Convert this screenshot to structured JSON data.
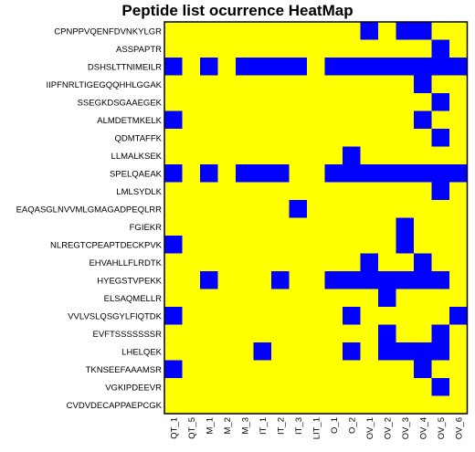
{
  "chart_data": {
    "type": "heatmap",
    "title": "Peptide list ocurrence HeatMap",
    "columns": [
      "QT_1",
      "QT_5",
      "M_1",
      "M_2",
      "M_3",
      "IT_1",
      "IT_2",
      "IT_3",
      "LIT_1",
      "O_1",
      "O_2",
      "OV_1",
      "OV_2",
      "OV_3",
      "OV_4",
      "OV_5",
      "OV_6"
    ],
    "rows": [
      "CPNPPVQENFDVNKYLGR",
      "ASSPAPTR",
      "DSHSLTTNIMEILR",
      "IIPFNRLTIGEGQQHHLGGAK",
      "SSEGKDSGAAEGEK",
      "ALMDETMKELK",
      "QDMTAFFK",
      "LLMALKSEK",
      "SPELQAEAK",
      "LMLSYDLK",
      "EAQASGLNVVMLGMAGADPEQLRR",
      "FGIEKR",
      "NLREGTCPEAPTDECKPVK",
      "EHVAHLLFLRDTK",
      "HYEGSTVPEKK",
      "ELSAQMELLR",
      "VVLVSLQSGYLFIQTDK",
      "EVFTSSSSSSSR",
      "LHELQEK",
      "TKNSEEFAAAMSR",
      "VGKIPDEEVR",
      "CVDVDECAPPAEPCGK"
    ],
    "values": [
      [
        0,
        0,
        0,
        0,
        0,
        0,
        0,
        0,
        0,
        0,
        0,
        1,
        0,
        1,
        1,
        0,
        0
      ],
      [
        0,
        0,
        0,
        0,
        0,
        0,
        0,
        0,
        0,
        0,
        0,
        0,
        0,
        0,
        0,
        1,
        0
      ],
      [
        1,
        0,
        1,
        0,
        1,
        1,
        1,
        1,
        0,
        1,
        1,
        1,
        1,
        1,
        1,
        1,
        1
      ],
      [
        0,
        0,
        0,
        0,
        0,
        0,
        0,
        0,
        0,
        0,
        0,
        0,
        0,
        0,
        1,
        0,
        0
      ],
      [
        0,
        0,
        0,
        0,
        0,
        0,
        0,
        0,
        0,
        0,
        0,
        0,
        0,
        0,
        0,
        1,
        0
      ],
      [
        1,
        0,
        0,
        0,
        0,
        0,
        0,
        0,
        0,
        0,
        0,
        0,
        0,
        0,
        1,
        0,
        0
      ],
      [
        0,
        0,
        0,
        0,
        0,
        0,
        0,
        0,
        0,
        0,
        0,
        0,
        0,
        0,
        0,
        1,
        0
      ],
      [
        0,
        0,
        0,
        0,
        0,
        0,
        0,
        0,
        0,
        0,
        1,
        0,
        0,
        0,
        0,
        0,
        0
      ],
      [
        1,
        0,
        1,
        0,
        1,
        1,
        1,
        0,
        0,
        1,
        1,
        1,
        1,
        1,
        1,
        1,
        1
      ],
      [
        0,
        0,
        0,
        0,
        0,
        0,
        0,
        0,
        0,
        0,
        0,
        0,
        0,
        0,
        0,
        1,
        0
      ],
      [
        0,
        0,
        0,
        0,
        0,
        0,
        0,
        1,
        0,
        0,
        0,
        0,
        0,
        0,
        0,
        0,
        0
      ],
      [
        0,
        0,
        0,
        0,
        0,
        0,
        0,
        0,
        0,
        0,
        0,
        0,
        0,
        1,
        0,
        0,
        0
      ],
      [
        1,
        0,
        0,
        0,
        0,
        0,
        0,
        0,
        0,
        0,
        0,
        0,
        0,
        1,
        0,
        0,
        0
      ],
      [
        0,
        0,
        0,
        0,
        0,
        0,
        0,
        0,
        0,
        0,
        0,
        1,
        0,
        0,
        1,
        0,
        0
      ],
      [
        0,
        0,
        1,
        0,
        0,
        0,
        1,
        0,
        0,
        1,
        1,
        1,
        1,
        1,
        1,
        1,
        0
      ],
      [
        0,
        0,
        0,
        0,
        0,
        0,
        0,
        0,
        0,
        0,
        0,
        0,
        1,
        0,
        0,
        0,
        0
      ],
      [
        1,
        0,
        0,
        0,
        0,
        0,
        0,
        0,
        0,
        0,
        1,
        0,
        0,
        0,
        0,
        0,
        1
      ],
      [
        0,
        0,
        0,
        0,
        0,
        0,
        0,
        0,
        0,
        0,
        0,
        0,
        1,
        0,
        0,
        1,
        0
      ],
      [
        0,
        0,
        0,
        0,
        0,
        1,
        0,
        0,
        0,
        0,
        1,
        0,
        1,
        1,
        1,
        1,
        0
      ],
      [
        1,
        0,
        0,
        0,
        0,
        0,
        0,
        0,
        0,
        0,
        0,
        0,
        0,
        0,
        1,
        0,
        0
      ],
      [
        0,
        0,
        0,
        0,
        0,
        0,
        0,
        0,
        0,
        0,
        0,
        0,
        0,
        0,
        0,
        1,
        0
      ],
      [
        0,
        0,
        0,
        0,
        0,
        0,
        0,
        0,
        0,
        0,
        0,
        0,
        0,
        0,
        0,
        0,
        0
      ]
    ],
    "value_meaning": {
      "0": "absent",
      "1": "present"
    },
    "colors": {
      "absent": "#ffff00",
      "present": "#0000ff",
      "border": "#000000"
    }
  }
}
